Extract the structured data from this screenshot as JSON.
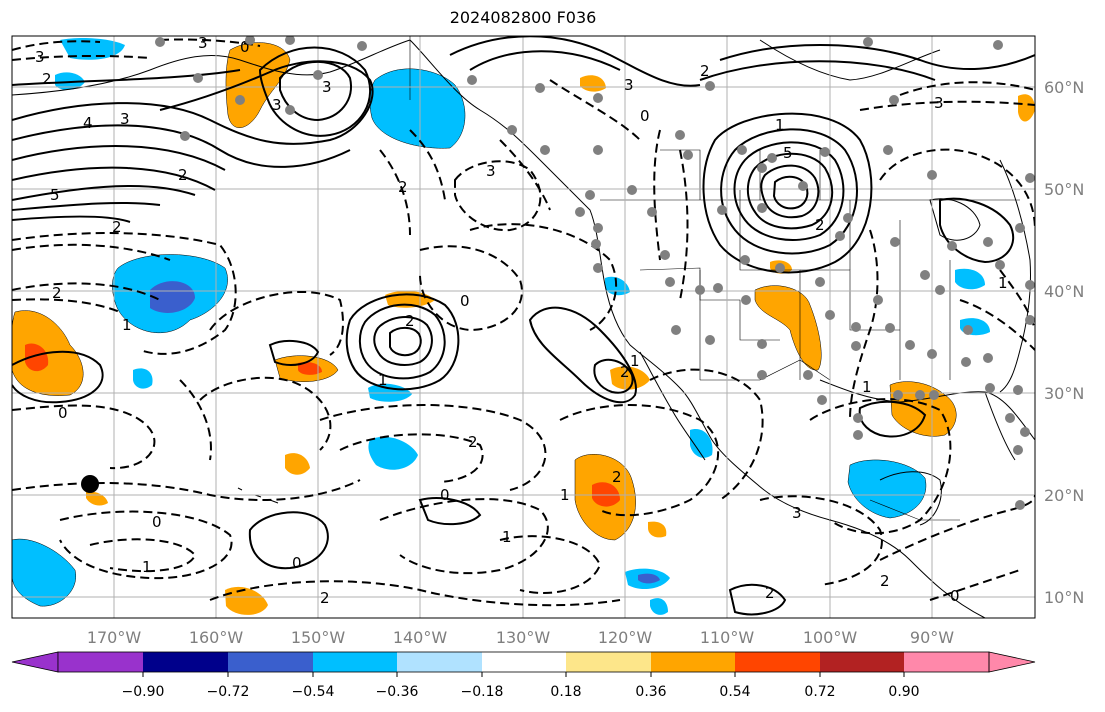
{
  "title": "2024082800 F036",
  "map": {
    "lon_range": [
      -180,
      -80
    ],
    "lat_range": [
      8,
      65
    ],
    "grid": true,
    "lon_labels": [
      "170°W",
      "160°W",
      "150°W",
      "140°W",
      "130°W",
      "120°W",
      "110°W",
      "100°W",
      "90°W"
    ],
    "lat_labels": [
      "60°N",
      "50°N",
      "40°N",
      "30°N",
      "20°N",
      "10°N"
    ],
    "contour_labels": [
      "3",
      "2",
      "4",
      "3",
      "5",
      "2",
      "2",
      "1",
      "0",
      "2",
      "3",
      "3",
      "3",
      "0",
      "3",
      "2",
      "2",
      "1",
      "5",
      "2",
      "3",
      "3",
      "2",
      "1",
      "0",
      "2",
      "1",
      "0",
      "2",
      "0",
      "1",
      "2",
      "1",
      "0",
      "1",
      "0",
      "2",
      "3",
      "2",
      "2",
      "1",
      "1",
      "0"
    ],
    "colors": {
      "contour": "#000000",
      "grid": "#b0b0b0",
      "coast": "#000000",
      "marker": "#808080"
    }
  },
  "colorbar": {
    "colors": [
      "#9932cc",
      "#00008b",
      "#3a5fcd",
      "#00bfff",
      "#b0e2ff",
      "#ffffff",
      "#fde68a",
      "#ffa500",
      "#ff4500",
      "#b22222",
      "#ff88aa"
    ],
    "labels": [
      "−0.90",
      "−0.72",
      "−0.54",
      "−0.36",
      "−0.18",
      "0.18",
      "0.36",
      "0.54",
      "0.72",
      "0.90"
    ]
  }
}
